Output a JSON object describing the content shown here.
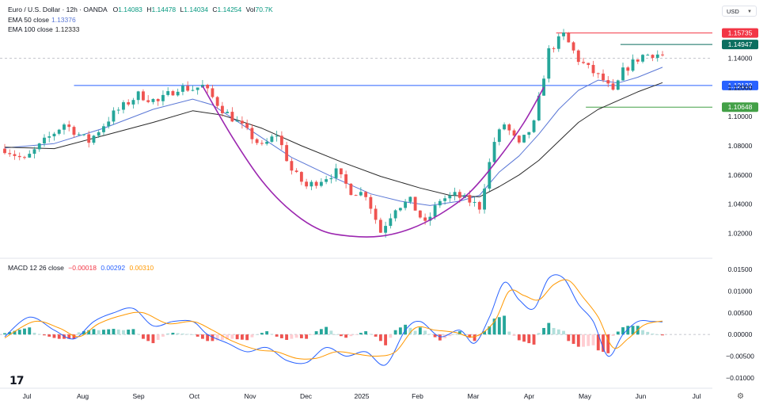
{
  "header": {
    "symbol": "Euro / U.S. Dollar · 12h · OANDA",
    "o_label": "O",
    "o_value": "1.14083",
    "h_label": "H",
    "h_value": "1.14478",
    "l_label": "L",
    "l_value": "1.14034",
    "c_label": "C",
    "c_value": "1.14254",
    "vol_label": "Vol",
    "vol_value": "70.7K",
    "ema50_label": "EMA 50 close",
    "ema50_value": "1.13376",
    "ema100_label": "EMA 100 close",
    "ema100_value": "1.12333",
    "macd_label": "MACD 12 26 close",
    "macd_hist_value": "−0.00018",
    "macd_line_value": "0.00292",
    "macd_signal_value": "0.00310",
    "currency": "USD"
  },
  "colors": {
    "up": "#26a69a",
    "down": "#ef5350",
    "ema50": "#5b78d6",
    "ema100": "#2a2a2a",
    "cup": "#9c27b0",
    "macd_line": "#2962ff",
    "macd_signal": "#ff9800",
    "level_red": "#f23645",
    "level_dark_green": "#0b6e5f",
    "level_blue": "#2962ff",
    "level_green": "#43a047"
  },
  "chart_data": [
    {
      "type": "candlestick",
      "title": "Euro / U.S. Dollar · 12h · OANDA",
      "x_tick_labels": [
        "Jul",
        "Aug",
        "Sep",
        "Oct",
        "Nov",
        "Dec",
        "2025",
        "Feb",
        "Mar",
        "Apr",
        "May",
        "Jun",
        "Jul"
      ],
      "y_tick_labels": [
        "1.14000",
        "1.12000",
        "1.10000",
        "1.08000",
        "1.06000",
        "1.04000",
        "1.02000"
      ],
      "y_ticks": [
        1.14,
        1.12,
        1.1,
        1.08,
        1.06,
        1.04,
        1.02
      ],
      "ylim": [
        1.005,
        1.168
      ],
      "price_path": [
        [
          0,
          1.078
        ],
        [
          4,
          1.07
        ],
        [
          8,
          1.083
        ],
        [
          12,
          1.095
        ],
        [
          17,
          1.083
        ],
        [
          22,
          1.102
        ],
        [
          27,
          1.115
        ],
        [
          31,
          1.11
        ],
        [
          35,
          1.12
        ],
        [
          38,
          1.119
        ],
        [
          40,
          1.121
        ],
        [
          44,
          1.105
        ],
        [
          48,
          1.093
        ],
        [
          52,
          1.079
        ],
        [
          55,
          1.088
        ],
        [
          58,
          1.063
        ],
        [
          61,
          1.052
        ],
        [
          64,
          1.057
        ],
        [
          67,
          1.062
        ],
        [
          70,
          1.049
        ],
        [
          73,
          1.047
        ],
        [
          76,
          1.021
        ],
        [
          79,
          1.038
        ],
        [
          82,
          1.042
        ],
        [
          85,
          1.026
        ],
        [
          88,
          1.043
        ],
        [
          91,
          1.046
        ],
        [
          94,
          1.042
        ],
        [
          96,
          1.038
        ],
        [
          99,
          1.083
        ],
        [
          101,
          1.095
        ],
        [
          104,
          1.08
        ],
        [
          107,
          1.095
        ],
        [
          110,
          1.145
        ],
        [
          113,
          1.156
        ],
        [
          116,
          1.139
        ],
        [
          118,
          1.133
        ],
        [
          121,
          1.125
        ],
        [
          123,
          1.116
        ],
        [
          125,
          1.131
        ],
        [
          127,
          1.137
        ],
        [
          129,
          1.142
        ],
        [
          131,
          1.143
        ],
        [
          133,
          1.1425
        ]
      ],
      "ema50_path": [
        [
          0,
          1.0785
        ],
        [
          10,
          1.0815
        ],
        [
          20,
          1.092
        ],
        [
          30,
          1.105
        ],
        [
          38,
          1.112
        ],
        [
          42,
          1.108
        ],
        [
          50,
          1.09
        ],
        [
          58,
          1.072
        ],
        [
          66,
          1.059
        ],
        [
          74,
          1.047
        ],
        [
          80,
          1.042
        ],
        [
          86,
          1.039
        ],
        [
          92,
          1.042
        ],
        [
          96,
          1.046
        ],
        [
          100,
          1.062
        ],
        [
          104,
          1.073
        ],
        [
          108,
          1.088
        ],
        [
          112,
          1.105
        ],
        [
          116,
          1.118
        ],
        [
          120,
          1.125
        ],
        [
          124,
          1.123
        ],
        [
          128,
          1.127
        ],
        [
          133,
          1.1338
        ]
      ],
      "ema100_path": [
        [
          0,
          1.079
        ],
        [
          10,
          1.078
        ],
        [
          20,
          1.087
        ],
        [
          30,
          1.096
        ],
        [
          38,
          1.104
        ],
        [
          44,
          1.101
        ],
        [
          52,
          1.092
        ],
        [
          60,
          1.08
        ],
        [
          68,
          1.069
        ],
        [
          76,
          1.059
        ],
        [
          84,
          1.051
        ],
        [
          90,
          1.046
        ],
        [
          96,
          1.045
        ],
        [
          100,
          1.052
        ],
        [
          104,
          1.06
        ],
        [
          108,
          1.07
        ],
        [
          112,
          1.083
        ],
        [
          116,
          1.096
        ],
        [
          120,
          1.105
        ],
        [
          124,
          1.111
        ],
        [
          128,
          1.117
        ],
        [
          133,
          1.1233
        ]
      ],
      "cup_path": [
        [
          40,
          1.121
        ],
        [
          46,
          1.086
        ],
        [
          52,
          1.056
        ],
        [
          58,
          1.035
        ],
        [
          64,
          1.022
        ],
        [
          70,
          1.018
        ],
        [
          76,
          1.018
        ],
        [
          82,
          1.023
        ],
        [
          88,
          1.033
        ],
        [
          94,
          1.048
        ],
        [
          100,
          1.072
        ],
        [
          105,
          1.096
        ],
        [
          109,
          1.12
        ]
      ],
      "levels": [
        {
          "label": "1.15735",
          "value": 1.15735,
          "color_key": "level_red",
          "from": 111.5,
          "to": 133
        },
        {
          "label": "1.14947",
          "value": 1.14947,
          "color_key": "level_dark_green",
          "from": 124.5,
          "to": 133
        },
        {
          "label": "1.12132",
          "value": 1.12132,
          "color_key": "level_blue",
          "from": 14,
          "to": 133
        },
        {
          "label": "1.10648",
          "value": 1.10648,
          "color_key": "level_green",
          "from": 117.5,
          "to": 133
        }
      ],
      "current_price_label": "1.14000",
      "current_price": 1.14,
      "x_count": 134
    },
    {
      "type": "macd",
      "title": "MACD 12 26 close",
      "y_tick_labels": [
        "0.01500",
        "0.01000",
        "0.00500",
        "0.00000",
        "−0.00500",
        "−0.01000"
      ],
      "y_ticks": [
        0.015,
        0.01,
        0.005,
        0.0,
        -0.005,
        -0.01
      ],
      "ylim": [
        -0.0115,
        0.0165
      ],
      "macd_path": [
        [
          0,
          -0.0005
        ],
        [
          5,
          0.004
        ],
        [
          10,
          0.001
        ],
        [
          14,
          -0.001
        ],
        [
          18,
          0.003
        ],
        [
          22,
          0.005
        ],
        [
          26,
          0.006
        ],
        [
          30,
          0.002
        ],
        [
          34,
          0.003
        ],
        [
          38,
          0.003
        ],
        [
          41,
          0.0
        ],
        [
          45,
          -0.002
        ],
        [
          49,
          -0.004
        ],
        [
          53,
          -0.003
        ],
        [
          57,
          -0.006
        ],
        [
          61,
          -0.0065
        ],
        [
          65,
          -0.003
        ],
        [
          69,
          -0.005
        ],
        [
          73,
          -0.004
        ],
        [
          77,
          -0.007
        ],
        [
          81,
          0.001
        ],
        [
          84,
          0.003
        ],
        [
          88,
          -0.0005
        ],
        [
          92,
          0.001
        ],
        [
          95,
          -0.002
        ],
        [
          98,
          0.004
        ],
        [
          101,
          0.012
        ],
        [
          104,
          0.008
        ],
        [
          107,
          0.006
        ],
        [
          110,
          0.013
        ],
        [
          113,
          0.013
        ],
        [
          116,
          0.007
        ],
        [
          119,
          0.003
        ],
        [
          122,
          -0.005
        ],
        [
          125,
          0.0
        ],
        [
          128,
          0.003
        ],
        [
          131,
          0.003
        ],
        [
          133,
          0.0029
        ]
      ],
      "signal_path": [
        [
          0,
          -0.0008
        ],
        [
          6,
          0.003
        ],
        [
          11,
          0.0015
        ],
        [
          15,
          -0.0005
        ],
        [
          19,
          0.0025
        ],
        [
          24,
          0.0045
        ],
        [
          28,
          0.005
        ],
        [
          33,
          0.0025
        ],
        [
          38,
          0.003
        ],
        [
          42,
          0.001
        ],
        [
          46,
          -0.0015
        ],
        [
          51,
          -0.0035
        ],
        [
          55,
          -0.004
        ],
        [
          59,
          -0.0055
        ],
        [
          63,
          -0.0055
        ],
        [
          67,
          -0.004
        ],
        [
          71,
          -0.0045
        ],
        [
          75,
          -0.005
        ],
        [
          79,
          -0.004
        ],
        [
          83,
          0.0015
        ],
        [
          87,
          0.001
        ],
        [
          91,
          0.0005
        ],
        [
          95,
          -0.0005
        ],
        [
          99,
          0.003
        ],
        [
          102,
          0.01
        ],
        [
          105,
          0.009
        ],
        [
          108,
          0.008
        ],
        [
          111,
          0.0115
        ],
        [
          114,
          0.0125
        ],
        [
          117,
          0.0085
        ],
        [
          120,
          0.004
        ],
        [
          123,
          -0.003
        ],
        [
          126,
          -0.001
        ],
        [
          129,
          0.002
        ],
        [
          131,
          0.0028
        ],
        [
          133,
          0.0031
        ]
      ]
    }
  ]
}
